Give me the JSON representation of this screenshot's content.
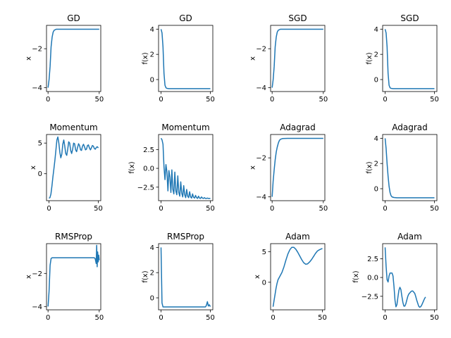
{
  "chart_data": [
    {
      "type": "line",
      "title": "GD",
      "ylabel": "x",
      "xlim": [
        -1.5,
        51.5
      ],
      "ylim": [
        -4.2,
        -0.8
      ],
      "xticks": [
        0,
        50
      ],
      "yticks": [
        -4,
        -2
      ],
      "color": "#1f77b4",
      "points": [
        [
          0,
          -4
        ],
        [
          1,
          -3.6
        ],
        [
          2,
          -2.9
        ],
        [
          3,
          -1.9
        ],
        [
          4,
          -1.4
        ],
        [
          5,
          -1.15
        ],
        [
          6,
          -1.05
        ],
        [
          8,
          -1.0
        ],
        [
          12,
          -1.0
        ],
        [
          50,
          -1.0
        ]
      ]
    },
    {
      "type": "line",
      "title": "GD",
      "ylabel": "f(x)",
      "xlim": [
        -2.5,
        52.5
      ],
      "ylim": [
        -0.95,
        4.3
      ],
      "xticks": [
        0,
        50
      ],
      "yticks": [
        0,
        2,
        4
      ],
      "color": "#1f77b4",
      "points": [
        [
          0,
          4
        ],
        [
          1,
          3.7
        ],
        [
          2,
          2.6
        ],
        [
          3,
          0.5
        ],
        [
          4,
          -0.45
        ],
        [
          5,
          -0.65
        ],
        [
          6,
          -0.7
        ],
        [
          8,
          -0.72
        ],
        [
          50,
          -0.72
        ]
      ]
    },
    {
      "type": "line",
      "title": "SGD",
      "ylabel": "x",
      "xlim": [
        -1.5,
        51.5
      ],
      "ylim": [
        -4.2,
        -0.8
      ],
      "xticks": [
        0,
        50
      ],
      "yticks": [
        -4,
        -2
      ],
      "color": "#1f77b4",
      "points": [
        [
          0,
          -4
        ],
        [
          1,
          -3.6
        ],
        [
          2,
          -2.9
        ],
        [
          3,
          -1.9
        ],
        [
          4,
          -1.4
        ],
        [
          5,
          -1.15
        ],
        [
          6,
          -1.05
        ],
        [
          8,
          -1.0
        ],
        [
          12,
          -1.0
        ],
        [
          50,
          -1.0
        ]
      ]
    },
    {
      "type": "line",
      "title": "SGD",
      "ylabel": "f(x)",
      "xlim": [
        -2.5,
        52.5
      ],
      "ylim": [
        -0.95,
        4.3
      ],
      "xticks": [
        0,
        50
      ],
      "yticks": [
        0,
        2,
        4
      ],
      "color": "#1f77b4",
      "points": [
        [
          0,
          4
        ],
        [
          1,
          3.7
        ],
        [
          2,
          2.6
        ],
        [
          3,
          0.5
        ],
        [
          4,
          -0.45
        ],
        [
          5,
          -0.65
        ],
        [
          6,
          -0.7
        ],
        [
          8,
          -0.72
        ],
        [
          50,
          -0.72
        ]
      ]
    },
    {
      "type": "line",
      "title": "Momentum",
      "ylabel": "x",
      "xlim": [
        -2.5,
        52.5
      ],
      "ylim": [
        -4.4,
        6.4
      ],
      "xticks": [
        0,
        50
      ],
      "yticks": [
        0,
        5
      ],
      "color": "#1f77b4",
      "points": [
        [
          0,
          -4
        ],
        [
          1,
          -3.9
        ],
        [
          2,
          -3.3
        ],
        [
          3,
          -2
        ],
        [
          4,
          -0.5
        ],
        [
          5,
          0.8
        ],
        [
          6,
          2.2
        ],
        [
          7,
          3.8
        ],
        [
          8,
          5.5
        ],
        [
          9,
          6.0
        ],
        [
          10,
          5.0
        ],
        [
          11,
          3.5
        ],
        [
          12,
          2.6
        ],
        [
          13,
          3.2
        ],
        [
          14,
          4.8
        ],
        [
          15,
          5.5
        ],
        [
          16,
          4.5
        ],
        [
          17,
          3.3
        ],
        [
          18,
          3.0
        ],
        [
          19,
          4.0
        ],
        [
          20,
          5.2
        ],
        [
          21,
          5.0
        ],
        [
          22,
          3.8
        ],
        [
          23,
          3.3
        ],
        [
          24,
          4.0
        ],
        [
          25,
          5.0
        ],
        [
          26,
          4.9
        ],
        [
          27,
          3.9
        ],
        [
          28,
          3.6
        ],
        [
          29,
          4.3
        ],
        [
          30,
          4.9
        ],
        [
          31,
          4.6
        ],
        [
          32,
          3.9
        ],
        [
          33,
          3.8
        ],
        [
          34,
          4.5
        ],
        [
          35,
          4.8
        ],
        [
          36,
          4.4
        ],
        [
          37,
          3.9
        ],
        [
          38,
          4.0
        ],
        [
          39,
          4.6
        ],
        [
          40,
          4.7
        ],
        [
          41,
          4.2
        ],
        [
          42,
          3.9
        ],
        [
          43,
          4.2
        ],
        [
          44,
          4.6
        ],
        [
          45,
          4.5
        ],
        [
          46,
          4.1
        ],
        [
          47,
          4.0
        ],
        [
          48,
          4.3
        ],
        [
          49,
          4.4
        ],
        [
          50,
          4.2
        ]
      ]
    },
    {
      "type": "line",
      "title": "Momentum",
      "ylabel": "f(x)",
      "xlim": [
        -2.5,
        52.5
      ],
      "ylim": [
        -4.3,
        4.5
      ],
      "xticks": [
        0,
        50
      ],
      "yticks": [
        -2.5,
        0.0,
        2.5
      ],
      "color": "#1f77b4",
      "points": [
        [
          0,
          4
        ],
        [
          1,
          3.8
        ],
        [
          2,
          3.2
        ],
        [
          3,
          0.2
        ],
        [
          4,
          -1.5
        ],
        [
          5,
          0.5
        ],
        [
          6,
          -0.5
        ],
        [
          7,
          -3.0
        ],
        [
          8,
          -0.3
        ],
        [
          9,
          -1.2
        ],
        [
          10,
          -3.2
        ],
        [
          11,
          -0.2
        ],
        [
          12,
          -2.8
        ],
        [
          13,
          -3.4
        ],
        [
          14,
          -0.5
        ],
        [
          15,
          -3.0
        ],
        [
          16,
          -3.5
        ],
        [
          17,
          -1.0
        ],
        [
          18,
          -3.2
        ],
        [
          19,
          -3.7
        ],
        [
          20,
          -1.8
        ],
        [
          21,
          -3.3
        ],
        [
          22,
          -3.8
        ],
        [
          23,
          -2.3
        ],
        [
          24,
          -3.5
        ],
        [
          25,
          -3.9
        ],
        [
          26,
          -2.8
        ],
        [
          27,
          -3.7
        ],
        [
          28,
          -3.9
        ],
        [
          29,
          -3.1
        ],
        [
          30,
          -3.8
        ],
        [
          31,
          -3.95
        ],
        [
          32,
          -3.4
        ],
        [
          33,
          -3.85
        ],
        [
          34,
          -3.95
        ],
        [
          35,
          -3.6
        ],
        [
          36,
          -3.9
        ],
        [
          37,
          -4.0
        ],
        [
          38,
          -3.7
        ],
        [
          39,
          -3.95
        ],
        [
          40,
          -4.0
        ],
        [
          41,
          -3.8
        ],
        [
          42,
          -3.95
        ],
        [
          43,
          -4.0
        ],
        [
          44,
          -3.9
        ],
        [
          45,
          -4.0
        ],
        [
          46,
          -4.0
        ],
        [
          47,
          -3.95
        ],
        [
          48,
          -4.0
        ],
        [
          49,
          -4.0
        ],
        [
          50,
          -4.0
        ]
      ]
    },
    {
      "type": "line",
      "title": "Adagrad",
      "ylabel": "x",
      "xlim": [
        -1.5,
        51.5
      ],
      "ylim": [
        -4.2,
        -0.8
      ],
      "xticks": [
        0,
        50
      ],
      "yticks": [
        -4,
        -2
      ],
      "color": "#1f77b4",
      "points": [
        [
          0,
          -4
        ],
        [
          1,
          -3.2
        ],
        [
          2,
          -2.6
        ],
        [
          3,
          -2.1
        ],
        [
          4,
          -1.7
        ],
        [
          5,
          -1.45
        ],
        [
          6,
          -1.25
        ],
        [
          7,
          -1.12
        ],
        [
          8,
          -1.05
        ],
        [
          10,
          -1.01
        ],
        [
          15,
          -1.0
        ],
        [
          50,
          -1.0
        ]
      ]
    },
    {
      "type": "line",
      "title": "Adagrad",
      "ylabel": "f(x)",
      "xlim": [
        -2.5,
        52.5
      ],
      "ylim": [
        -0.95,
        4.3
      ],
      "xticks": [
        0,
        50
      ],
      "yticks": [
        0,
        2,
        4
      ],
      "color": "#1f77b4",
      "points": [
        [
          0,
          4
        ],
        [
          1,
          3.2
        ],
        [
          2,
          2.0
        ],
        [
          3,
          1.0
        ],
        [
          4,
          0.2
        ],
        [
          5,
          -0.3
        ],
        [
          6,
          -0.55
        ],
        [
          7,
          -0.65
        ],
        [
          9,
          -0.7
        ],
        [
          12,
          -0.72
        ],
        [
          50,
          -0.72
        ]
      ]
    },
    {
      "type": "line",
      "title": "RMSProp",
      "ylabel": "x",
      "xlim": [
        -1.5,
        51.5
      ],
      "ylim": [
        -4.2,
        -0.2
      ],
      "xticks": [
        0,
        50
      ],
      "yticks": [
        -4,
        -2
      ],
      "color": "#1f77b4",
      "points": [
        [
          0,
          -4
        ],
        [
          1,
          -3.1
        ],
        [
          2,
          -1.5
        ],
        [
          3,
          -1.1
        ],
        [
          4,
          -1.05
        ],
        [
          5,
          -1.05
        ],
        [
          45,
          -1.05
        ],
        [
          46,
          -1.1
        ],
        [
          47,
          -1.4
        ],
        [
          47.5,
          -0.3
        ],
        [
          48,
          -1.6
        ],
        [
          48.5,
          -0.7
        ],
        [
          49,
          -1.3
        ],
        [
          49.5,
          -0.9
        ],
        [
          50,
          -1.2
        ]
      ]
    },
    {
      "type": "line",
      "title": "RMSProp",
      "ylabel": "f(x)",
      "xlim": [
        -2.5,
        52.5
      ],
      "ylim": [
        -0.95,
        4.3
      ],
      "xticks": [
        0,
        50
      ],
      "yticks": [
        0,
        2,
        4
      ],
      "color": "#1f77b4",
      "points": [
        [
          0,
          4
        ],
        [
          1,
          -0.4
        ],
        [
          2,
          -0.72
        ],
        [
          4,
          -0.72
        ],
        [
          45,
          -0.72
        ],
        [
          46,
          -0.6
        ],
        [
          47,
          -0.3
        ],
        [
          48,
          -0.65
        ],
        [
          49,
          -0.55
        ],
        [
          50,
          -0.7
        ]
      ]
    },
    {
      "type": "line",
      "title": "Adam",
      "ylabel": "x",
      "xlim": [
        -2.5,
        52.5
      ],
      "ylim": [
        -4.5,
        6.3
      ],
      "xticks": [
        0,
        50
      ],
      "yticks": [
        0,
        5
      ],
      "color": "#1f77b4",
      "points": [
        [
          0,
          -4
        ],
        [
          1,
          -3.0
        ],
        [
          2,
          -2.0
        ],
        [
          3,
          -1.0
        ],
        [
          4,
          -0.2
        ],
        [
          5,
          0.4
        ],
        [
          7,
          1.0
        ],
        [
          9,
          1.6
        ],
        [
          11,
          2.5
        ],
        [
          13,
          3.6
        ],
        [
          15,
          4.6
        ],
        [
          17,
          5.3
        ],
        [
          19,
          5.7
        ],
        [
          21,
          5.7
        ],
        [
          23,
          5.4
        ],
        [
          25,
          4.9
        ],
        [
          27,
          4.3
        ],
        [
          29,
          3.7
        ],
        [
          31,
          3.2
        ],
        [
          33,
          2.95
        ],
        [
          35,
          3.0
        ],
        [
          37,
          3.3
        ],
        [
          39,
          3.7
        ],
        [
          41,
          4.2
        ],
        [
          43,
          4.7
        ],
        [
          45,
          5.1
        ],
        [
          47,
          5.3
        ],
        [
          49,
          5.45
        ],
        [
          50,
          5.5
        ]
      ]
    },
    {
      "type": "line",
      "title": "Adam",
      "ylabel": "f(x)",
      "xlim": [
        -2.5,
        52.5
      ],
      "ylim": [
        -4.3,
        4.5
      ],
      "xticks": [
        0,
        50
      ],
      "yticks": [
        -2.5,
        0.0,
        2.5
      ],
      "color": "#1f77b4",
      "points": [
        [
          0,
          4
        ],
        [
          1,
          1.5
        ],
        [
          2,
          -0.3
        ],
        [
          3,
          -0.6
        ],
        [
          4,
          0.2
        ],
        [
          5,
          0.6
        ],
        [
          7,
          0.6
        ],
        [
          8,
          0.2
        ],
        [
          9,
          -1.2
        ],
        [
          10,
          -3.0
        ],
        [
          11,
          -3.9
        ],
        [
          12,
          -3.6
        ],
        [
          13,
          -2.6
        ],
        [
          14,
          -1.7
        ],
        [
          15,
          -1.3
        ],
        [
          16,
          -1.6
        ],
        [
          17,
          -2.5
        ],
        [
          18,
          -3.3
        ],
        [
          19,
          -3.8
        ],
        [
          20,
          -3.8
        ],
        [
          21,
          -3.5
        ],
        [
          22,
          -3.0
        ],
        [
          23,
          -2.5
        ],
        [
          24,
          -2.2
        ],
        [
          26,
          -1.9
        ],
        [
          27,
          -1.8
        ],
        [
          28,
          -1.8
        ],
        [
          30,
          -2.1
        ],
        [
          31,
          -2.5
        ],
        [
          32,
          -3.0
        ],
        [
          33,
          -3.4
        ],
        [
          34,
          -3.8
        ],
        [
          35,
          -3.95
        ],
        [
          36,
          -3.9
        ],
        [
          37,
          -3.7
        ],
        [
          38,
          -3.4
        ],
        [
          39,
          -3.1
        ],
        [
          40,
          -2.8
        ],
        [
          41,
          -2.6
        ]
      ]
    }
  ]
}
